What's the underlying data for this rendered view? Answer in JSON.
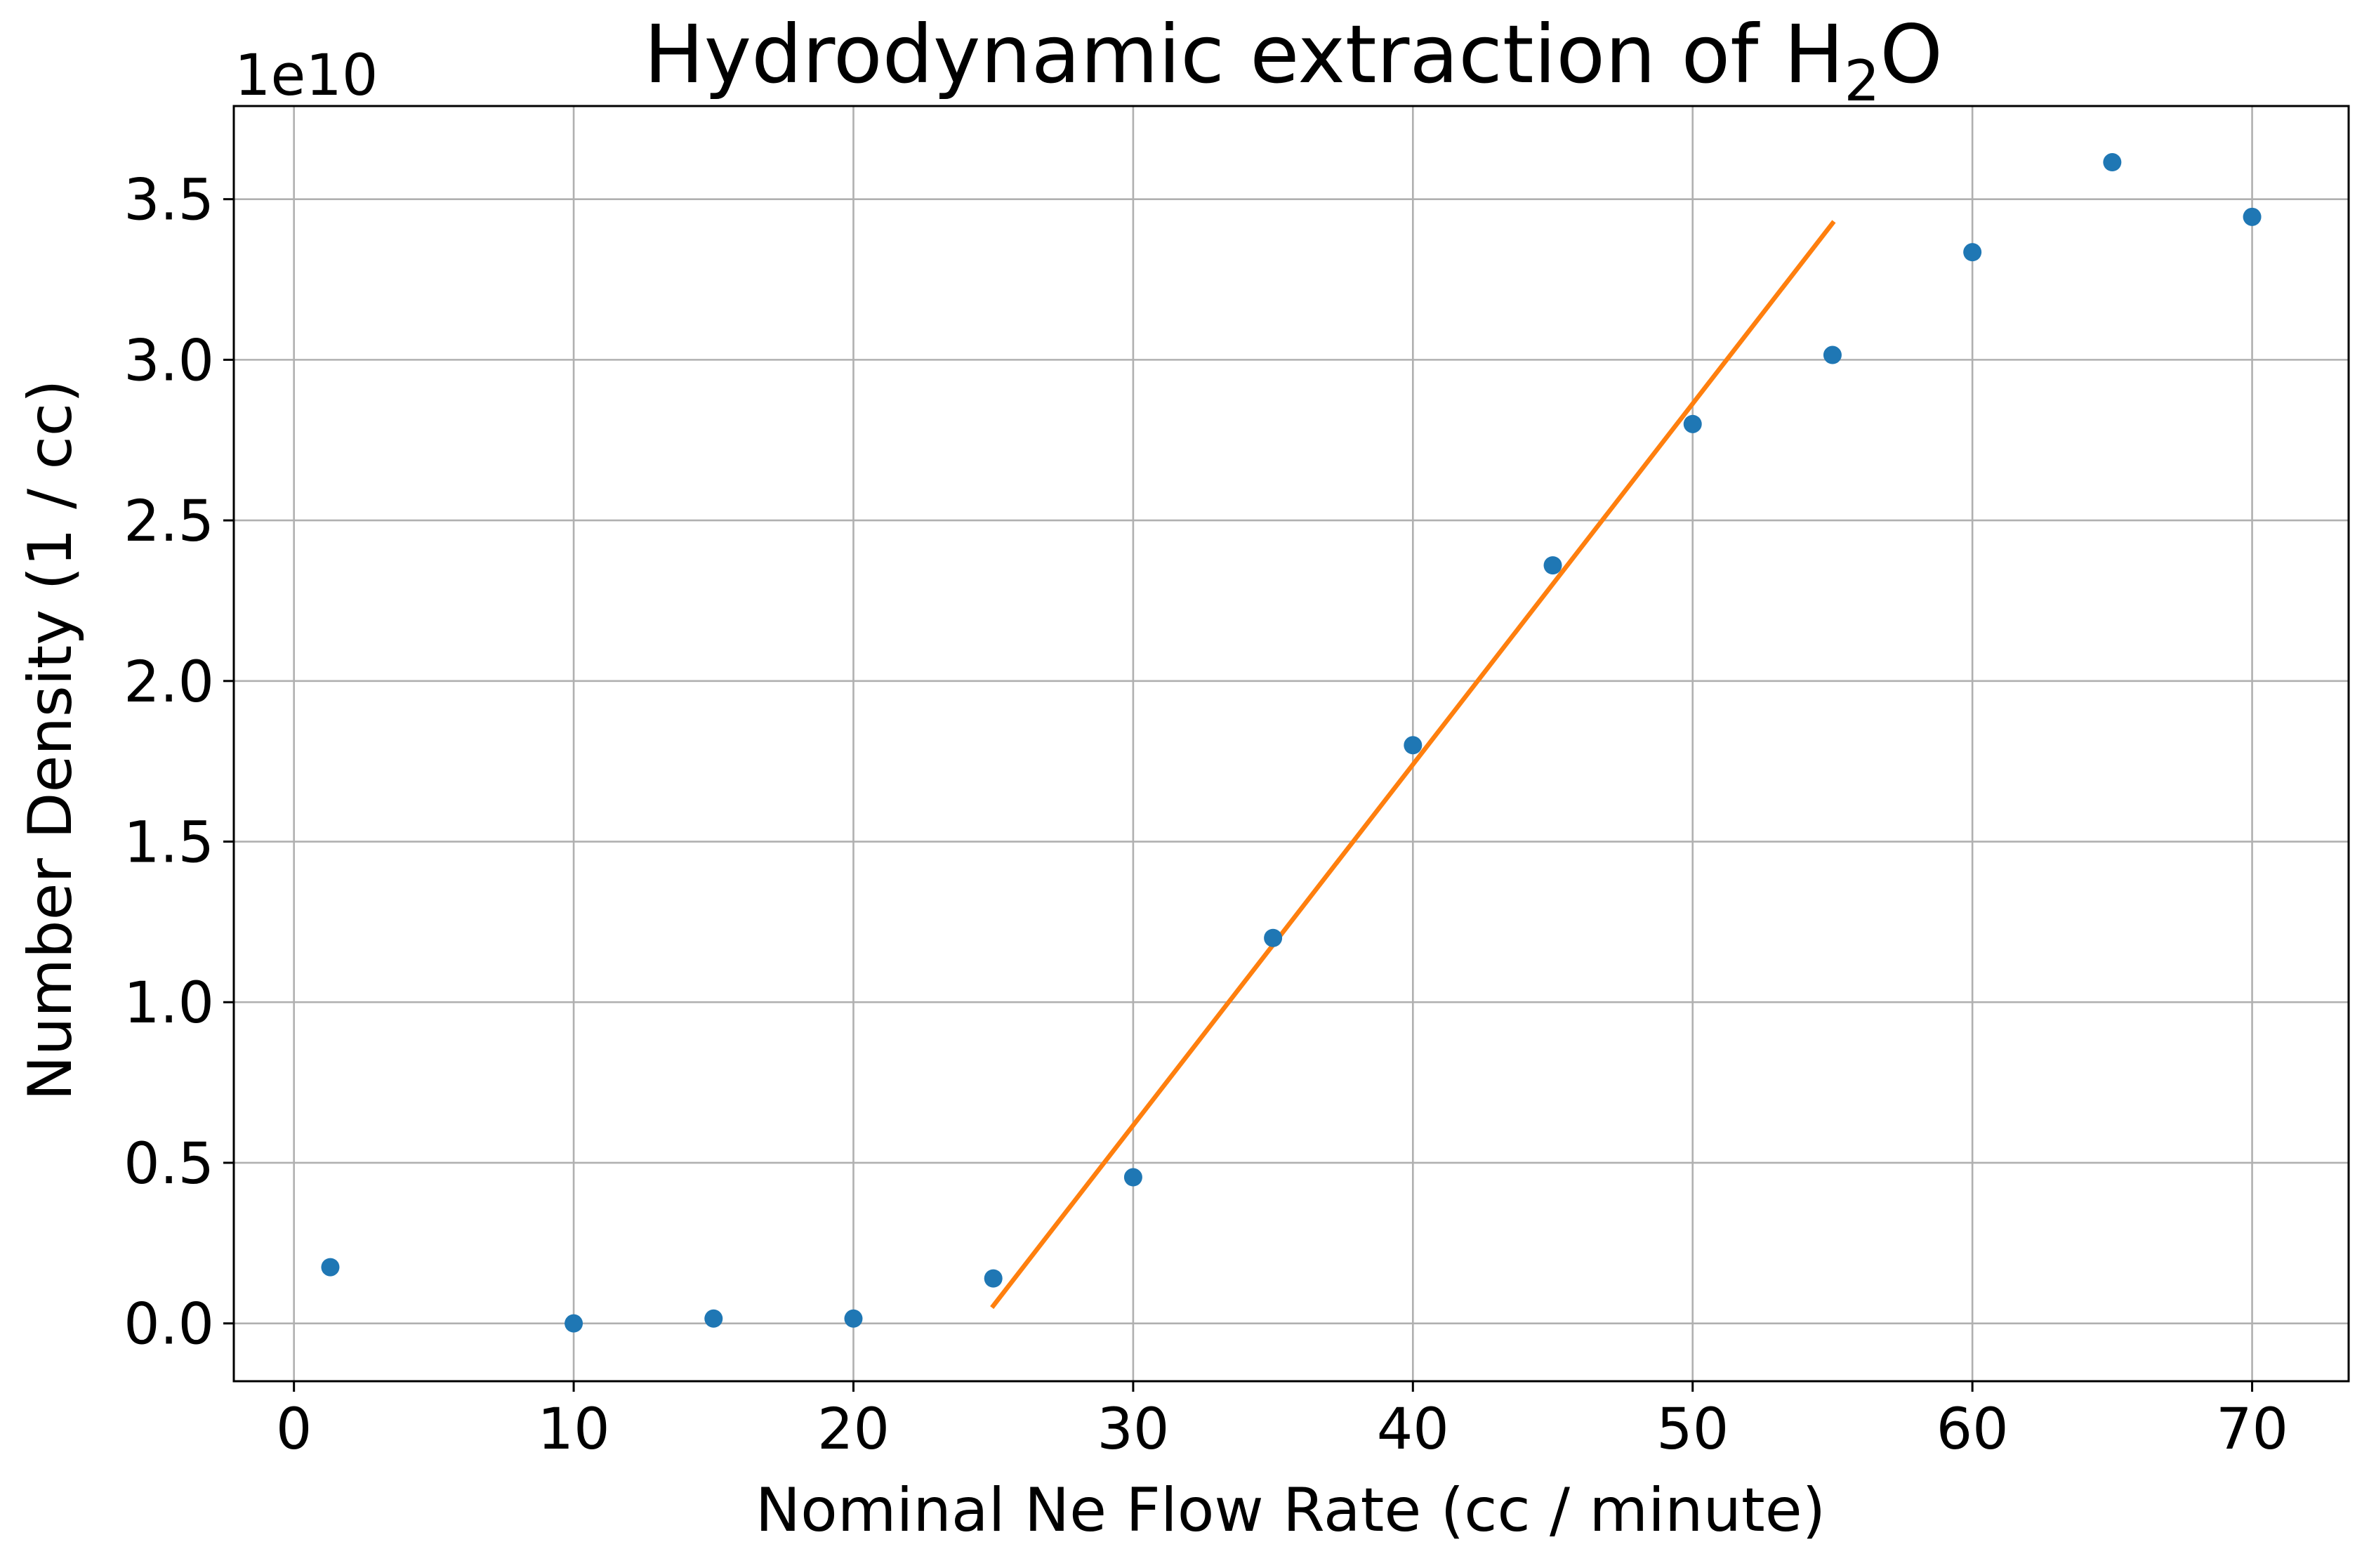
{
  "chart_data": {
    "type": "scatter",
    "title": "Hydrodynamic extraction of H",
    "title_subscript": "2",
    "title_suffix": "O",
    "xlabel": "Nominal Ne Flow Rate (cc / minute)",
    "ylabel": "Number Density (1 / cc)",
    "y_offset_text": "1e10",
    "xlim": [
      -2.15,
      73.45
    ],
    "ylim": [
      -0.18,
      3.79
    ],
    "x_ticks": [
      0,
      10,
      20,
      30,
      40,
      50,
      60,
      70
    ],
    "x_tick_labels": [
      "0",
      "10",
      "20",
      "30",
      "40",
      "50",
      "60",
      "70"
    ],
    "y_ticks": [
      0.0,
      0.5,
      1.0,
      1.5,
      2.0,
      2.5,
      3.0,
      3.5
    ],
    "y_tick_labels": [
      "0.0",
      "0.5",
      "1.0",
      "1.5",
      "2.0",
      "2.5",
      "3.0",
      "3.5"
    ],
    "grid": true,
    "series": [
      {
        "kind": "scatter",
        "color": "#1f77b4",
        "x": [
          1.3,
          10,
          15,
          20,
          25,
          30,
          35,
          40,
          45,
          50,
          55,
          60,
          65,
          70
        ],
        "y": [
          0.175,
          0.0,
          0.015,
          0.015,
          0.14,
          0.455,
          1.2,
          1.8,
          2.36,
          2.8,
          3.015,
          3.335,
          3.615,
          3.445
        ]
      },
      {
        "kind": "line",
        "color": "#ff7f0e",
        "x": [
          25,
          55
        ],
        "y": [
          0.055,
          3.425
        ]
      }
    ]
  }
}
